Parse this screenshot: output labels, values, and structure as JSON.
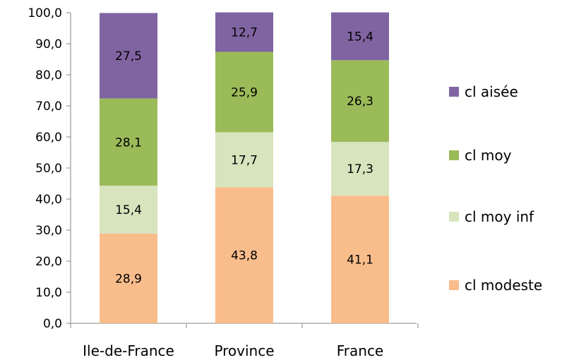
{
  "chart_data": {
    "type": "bar",
    "stacked": true,
    "categories": [
      "Ile-de-France",
      "Province",
      "France"
    ],
    "series": [
      {
        "name": "cl modeste",
        "color": "#F9BD8C",
        "values": [
          28.9,
          43.8,
          41.1
        ]
      },
      {
        "name": "cl moy inf",
        "color": "#D7E4BD",
        "values": [
          15.4,
          17.7,
          17.3
        ]
      },
      {
        "name": "cl moy",
        "color": "#9BBB59",
        "values": [
          28.1,
          25.9,
          26.3
        ]
      },
      {
        "name": "cl aisée",
        "color": "#8064A2",
        "values": [
          27.5,
          12.7,
          15.4
        ]
      }
    ],
    "data_labels": [
      [
        "28,9",
        "43,8",
        "41,1"
      ],
      [
        "15,4",
        "17,7",
        "17,3"
      ],
      [
        "28,1",
        "25,9",
        "26,3"
      ],
      [
        "27,5",
        "12,7",
        "15,4"
      ]
    ],
    "y_ticks": [
      "0,0",
      "10,0",
      "20,0",
      "30,0",
      "40,0",
      "50,0",
      "60,0",
      "70,0",
      "80,0",
      "90,0",
      "100,0"
    ],
    "ylim": [
      0,
      100
    ],
    "grid": false,
    "legend": "right",
    "legend_order": [
      "cl aisée",
      "cl moy",
      "cl moy inf",
      "cl modeste"
    ],
    "title": "",
    "xlabel": "",
    "ylabel": ""
  }
}
